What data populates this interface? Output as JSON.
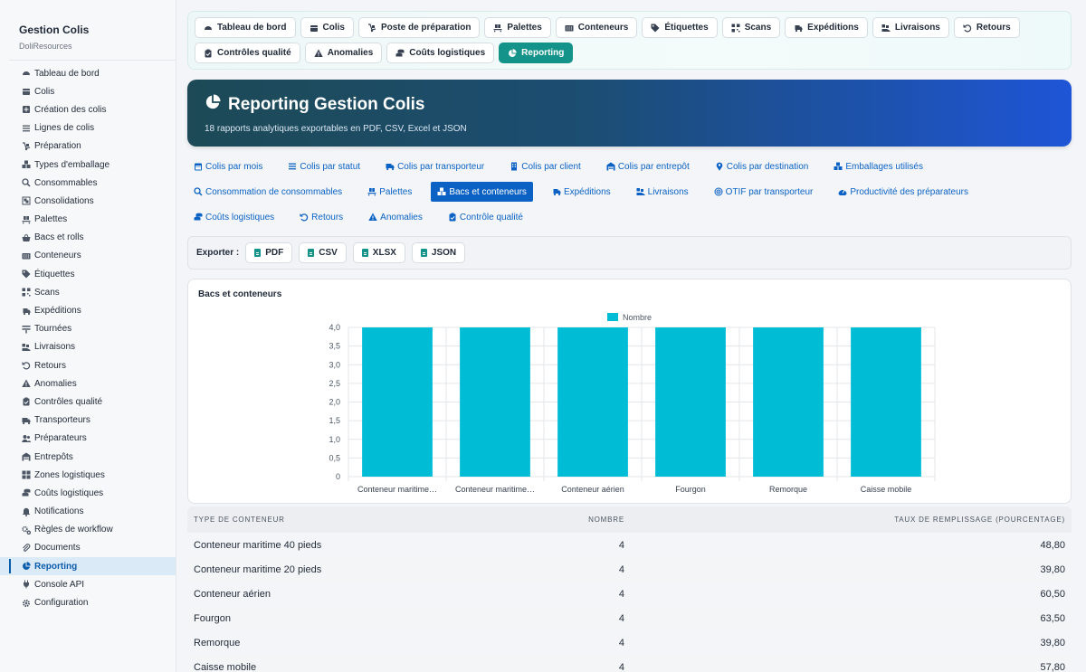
{
  "sidebar": {
    "title": "Gestion Colis",
    "subtitle": "DoliResources",
    "items": [
      {
        "label": "Tableau de bord",
        "icon": "dashboard-icon"
      },
      {
        "label": "Colis",
        "icon": "box-icon"
      },
      {
        "label": "Création des colis",
        "icon": "plus-square-icon"
      },
      {
        "label": "Lignes de colis",
        "icon": "list-icon"
      },
      {
        "label": "Préparation",
        "icon": "dolly-icon"
      },
      {
        "label": "Types d'emballage",
        "icon": "boxes-icon"
      },
      {
        "label": "Consommables",
        "icon": "search-dollar-icon"
      },
      {
        "label": "Consolidations",
        "icon": "object-group-icon"
      },
      {
        "label": "Palettes",
        "icon": "pallet-icon"
      },
      {
        "label": "Bacs et rolls",
        "icon": "basket-icon"
      },
      {
        "label": "Conteneurs",
        "icon": "container-icon"
      },
      {
        "label": "Étiquettes",
        "icon": "tag-icon"
      },
      {
        "label": "Scans",
        "icon": "qrcode-icon"
      },
      {
        "label": "Expéditions",
        "icon": "truck-fast-icon"
      },
      {
        "label": "Tournées",
        "icon": "route-icon"
      },
      {
        "label": "Livraisons",
        "icon": "delivery-icon"
      },
      {
        "label": "Retours",
        "icon": "undo-icon"
      },
      {
        "label": "Anomalies",
        "icon": "warning-icon"
      },
      {
        "label": "Contrôles qualité",
        "icon": "clipboard-check-icon"
      },
      {
        "label": "Transporteurs",
        "icon": "truck-icon"
      },
      {
        "label": "Préparateurs",
        "icon": "users-icon"
      },
      {
        "label": "Entrepôts",
        "icon": "warehouse-icon"
      },
      {
        "label": "Zones logistiques",
        "icon": "grid-icon"
      },
      {
        "label": "Coûts logistiques",
        "icon": "coins-icon"
      },
      {
        "label": "Notifications",
        "icon": "bell-icon"
      },
      {
        "label": "Règles de workflow",
        "icon": "cogs-icon"
      },
      {
        "label": "Documents",
        "icon": "paperclip-icon"
      },
      {
        "label": "Reporting",
        "icon": "chart-pie-icon"
      },
      {
        "label": "Console API",
        "icon": "plug-icon"
      },
      {
        "label": "Configuration",
        "icon": "gear-icon"
      }
    ],
    "active": "Reporting"
  },
  "topnav": [
    {
      "label": "Tableau de bord",
      "icon": "dashboard-icon"
    },
    {
      "label": "Colis",
      "icon": "box-icon"
    },
    {
      "label": "Poste de préparation",
      "icon": "dolly-icon"
    },
    {
      "label": "Palettes",
      "icon": "pallet-icon"
    },
    {
      "label": "Conteneurs",
      "icon": "container-icon"
    },
    {
      "label": "Étiquettes",
      "icon": "tags-icon"
    },
    {
      "label": "Scans",
      "icon": "qrcode-icon"
    },
    {
      "label": "Expéditions",
      "icon": "truck-fast-icon"
    },
    {
      "label": "Livraisons",
      "icon": "delivery-icon"
    },
    {
      "label": "Retours",
      "icon": "undo-icon"
    },
    {
      "label": "Contrôles qualité",
      "icon": "clipboard-check-icon"
    },
    {
      "label": "Anomalies",
      "icon": "warning-icon"
    },
    {
      "label": "Coûts logistiques",
      "icon": "coins-icon"
    },
    {
      "label": "Reporting",
      "icon": "chart-pie-icon",
      "active": true
    }
  ],
  "hero": {
    "title": "Reporting Gestion Colis",
    "subtitle": "18 rapports analytiques exportables en PDF, CSV, Excel et JSON"
  },
  "report_tabs": [
    {
      "label": "Colis par mois",
      "icon": "calendar-icon"
    },
    {
      "label": "Colis par statut",
      "icon": "list-icon"
    },
    {
      "label": "Colis par transporteur",
      "icon": "truck-icon"
    },
    {
      "label": "Colis par client",
      "icon": "building-icon"
    },
    {
      "label": "Colis par entrepôt",
      "icon": "warehouse-icon"
    },
    {
      "label": "Colis par destination",
      "icon": "map-marker-icon"
    },
    {
      "label": "Emballages utilisés",
      "icon": "boxes-icon"
    },
    {
      "label": "Consommation de consommables",
      "icon": "search-dollar-icon"
    },
    {
      "label": "Palettes",
      "icon": "pallet-icon"
    },
    {
      "label": "Bacs et conteneurs",
      "icon": "cubes-icon",
      "active": true
    },
    {
      "label": "Expéditions",
      "icon": "truck-fast-icon"
    },
    {
      "label": "Livraisons",
      "icon": "delivery-icon"
    },
    {
      "label": "OTIF par transporteur",
      "icon": "bullseye-icon"
    },
    {
      "label": "Productivité des préparateurs",
      "icon": "tachometer-icon"
    },
    {
      "label": "Coûts logistiques",
      "icon": "coins-icon"
    },
    {
      "label": "Retours",
      "icon": "undo-icon"
    },
    {
      "label": "Anomalies",
      "icon": "warning-icon"
    },
    {
      "label": "Contrôle qualité",
      "icon": "clipboard-check-icon"
    }
  ],
  "export": {
    "label": "Exporter :",
    "buttons": [
      "PDF",
      "CSV",
      "XLSX",
      "JSON"
    ]
  },
  "card_title": "Bacs et conteneurs",
  "chart_data": {
    "type": "bar",
    "title": "",
    "categories": [
      "Conteneur maritime…",
      "Conteneur maritime…",
      "Conteneur aérien",
      "Fourgon",
      "Remorque",
      "Caisse mobile"
    ],
    "series": [
      {
        "name": "Nombre",
        "values": [
          4,
          4,
          4,
          4,
          4,
          4
        ],
        "color": "#00bcd4"
      }
    ],
    "ylim": [
      0,
      4
    ],
    "yticks": [
      "0",
      "0,5",
      "1,0",
      "1,5",
      "2,0",
      "2,5",
      "3,0",
      "3,5",
      "4,0"
    ],
    "legend": "top-center",
    "grid": true
  },
  "table": {
    "headers": [
      "TYPE DE CONTENEUR",
      "NOMBRE",
      "TAUX DE REMPLISSAGE (POURCENTAGE)"
    ],
    "rows": [
      [
        "Conteneur maritime 40 pieds",
        "4",
        "48,80"
      ],
      [
        "Conteneur maritime 20 pieds",
        "4",
        "39,80"
      ],
      [
        "Conteneur aérien",
        "4",
        "60,50"
      ],
      [
        "Fourgon",
        "4",
        "63,50"
      ],
      [
        "Remorque",
        "4",
        "39,80"
      ],
      [
        "Caisse mobile",
        "4",
        "57,80"
      ]
    ]
  },
  "colors": {
    "accent_teal": "#14938a",
    "link_blue": "#0b62c4",
    "bar": "#00bcd4"
  }
}
